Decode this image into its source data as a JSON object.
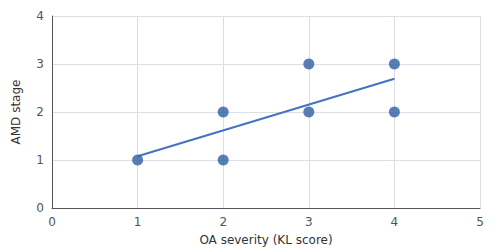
{
  "chart_data": {
    "type": "scatter",
    "xlabel": "OA severity (KL score)",
    "ylabel": "AMD stage",
    "series": [
      {
        "type": "scatter",
        "marker": "circle",
        "color": "#2e5fa3",
        "x": [
          1,
          2,
          2,
          3,
          3,
          4,
          4
        ],
        "values": [
          1,
          2,
          1,
          3,
          2,
          3,
          2
        ]
      },
      {
        "type": "line",
        "line_style": "solid",
        "color": "#4472c4",
        "x": [
          1.0,
          4.0
        ],
        "values": [
          1.0769230769230769,
          2.6923076923076925
        ]
      }
    ],
    "xlim": [
      0,
      5
    ],
    "ylim": [
      0,
      4
    ],
    "xticks": [
      0,
      1,
      2,
      3,
      4,
      5
    ],
    "yticks": [
      0,
      1,
      2,
      3,
      4
    ],
    "grid": true
  }
}
